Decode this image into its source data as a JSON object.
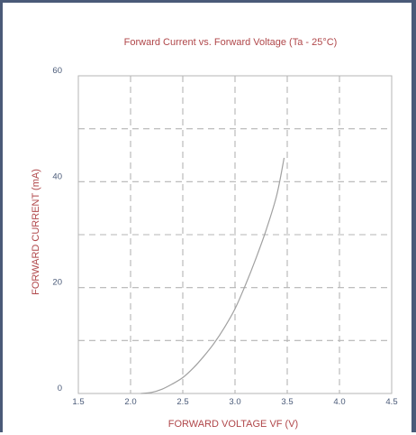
{
  "colors": {
    "frame": "#4a5a78",
    "grid": "#b5b5b5",
    "curve": "#a0a0a0",
    "text_red": "#b0474a",
    "tick_text": "#4a5a78"
  },
  "chart_data": {
    "type": "line",
    "title": "Forward Current vs. Forward Voltage (Ta - 25°C)",
    "xlabel": "FORWARD VOLTAGE VF (V)",
    "ylabel": "FORWARD CURRENT (mA)",
    "xlim": [
      1.5,
      4.5
    ],
    "ylim": [
      0,
      60
    ],
    "x_ticks": [
      1.5,
      2.0,
      2.5,
      3.0,
      3.5,
      4.0,
      4.5
    ],
    "x_tick_labels": [
      "1.5",
      "2.0",
      "2.5",
      "3.0",
      "3.5",
      "4.0",
      "4.5"
    ],
    "y_ticks": [
      0,
      20,
      40,
      60
    ],
    "y_tick_labels": [
      "0",
      "20",
      "40",
      "60"
    ],
    "y_grid": [
      10,
      20,
      30,
      40,
      50
    ],
    "grid": true,
    "grid_style": "dashed",
    "series": [
      {
        "x": [
          2.1,
          2.2,
          2.3,
          2.4,
          2.5,
          2.6,
          2.7,
          2.8,
          2.9,
          3.0,
          3.1,
          3.2,
          3.3,
          3.4,
          3.47
        ],
        "y": [
          0,
          0.2,
          0.8,
          1.8,
          3.0,
          4.8,
          7.0,
          9.5,
          12.5,
          16.0,
          20.5,
          25.5,
          31.0,
          37.5,
          44.5
        ]
      }
    ]
  }
}
